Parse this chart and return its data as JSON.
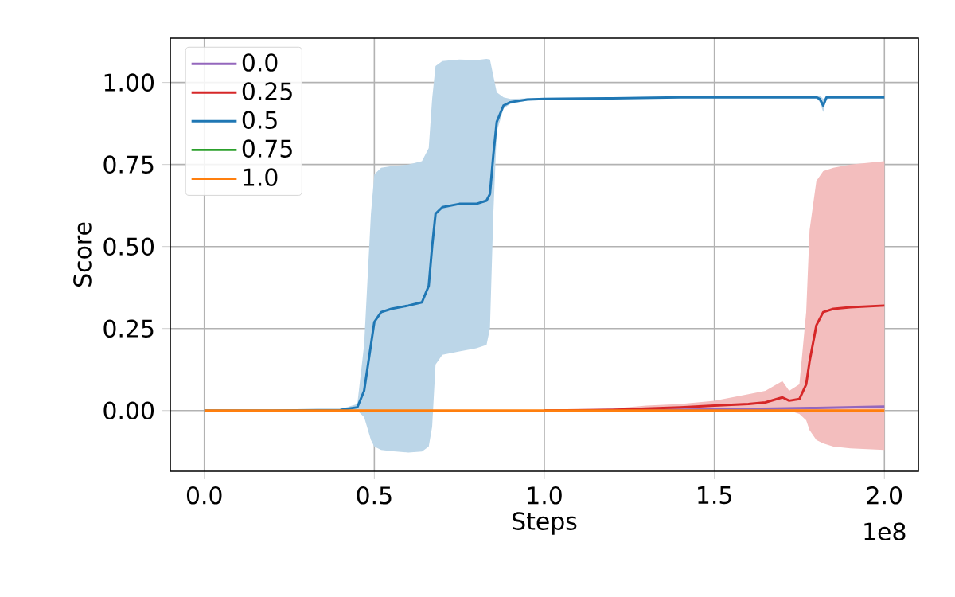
{
  "chart_data": {
    "type": "line",
    "xlabel": "Steps",
    "ylabel": "Score",
    "xlim": [
      -0.1,
      2.1
    ],
    "ylim": [
      -0.185,
      1.135
    ],
    "xticks": [
      {
        "value": 0,
        "label": "0.0"
      },
      {
        "value": 0.5,
        "label": "0.5"
      },
      {
        "value": 1,
        "label": "1.0"
      },
      {
        "value": 1.5,
        "label": "1.5"
      },
      {
        "value": 2,
        "label": "2.0"
      }
    ],
    "yticks": [
      {
        "value": 0,
        "label": "0.00"
      },
      {
        "value": 0.25,
        "label": "0.25"
      },
      {
        "value": 0.5,
        "label": "0.50"
      },
      {
        "value": 0.75,
        "label": "0.75"
      },
      {
        "value": 1,
        "label": "1.00"
      }
    ],
    "annotations": [
      "1e8"
    ],
    "grid": true,
    "legend": "top left",
    "line_style": "solid",
    "series": [
      {
        "name": "0.0",
        "color": "#9467bd",
        "x": [
          1,
          1.5,
          1.8,
          2
        ],
        "values": [
          0,
          0.003,
          0.008,
          0.012
        ]
      },
      {
        "name": "0.25",
        "color": "#d62728",
        "x": [
          0,
          0.5,
          1,
          1.2,
          1.3,
          1.4,
          1.5,
          1.6,
          1.65,
          1.7,
          1.72,
          1.75,
          1.77,
          1.78,
          1.8,
          1.82,
          1.85,
          1.9,
          2
        ],
        "values": [
          null,
          null,
          0,
          0.002,
          0.006,
          0.01,
          0.015,
          0.02,
          0.025,
          0.04,
          0.03,
          0.035,
          0.08,
          0.15,
          0.26,
          0.3,
          0.31,
          0.315,
          0.32
        ],
        "lower": [
          0,
          0,
          0,
          -0.002,
          -0.001,
          0,
          0,
          0,
          0,
          0,
          0,
          -0.01,
          -0.03,
          -0.06,
          -0.09,
          -0.1,
          -0.11,
          -0.115,
          -0.12
        ],
        "upper": [
          0,
          0,
          0,
          0.006,
          0.015,
          0.02,
          0.03,
          0.05,
          0.06,
          0.09,
          0.06,
          0.08,
          0.3,
          0.55,
          0.7,
          0.73,
          0.74,
          0.75,
          0.76
        ]
      },
      {
        "name": "0.5",
        "color": "#1f77b4",
        "x": [
          0,
          0.2,
          0.4,
          0.45,
          0.47,
          0.49,
          0.5,
          0.52,
          0.55,
          0.6,
          0.64,
          0.66,
          0.67,
          0.68,
          0.7,
          0.75,
          0.8,
          0.83,
          0.84,
          0.85,
          0.86,
          0.88,
          0.9,
          0.95,
          1,
          1.2,
          1.4,
          1.6,
          1.8,
          1.81,
          1.82,
          1.83,
          1.85,
          2
        ],
        "values": [
          0,
          0,
          0.002,
          0.01,
          0.06,
          0.2,
          0.27,
          0.3,
          0.31,
          0.32,
          0.33,
          0.38,
          0.5,
          0.6,
          0.62,
          0.63,
          0.63,
          0.64,
          0.66,
          0.78,
          0.88,
          0.93,
          0.94,
          0.948,
          0.95,
          0.952,
          0.955,
          0.955,
          0.955,
          0.95,
          0.93,
          0.955,
          0.955,
          0.955
        ],
        "lower": [
          0,
          0,
          0,
          0,
          -0.02,
          -0.09,
          -0.11,
          -0.12,
          -0.124,
          -0.128,
          -0.125,
          -0.11,
          -0.05,
          0.14,
          0.17,
          0.18,
          0.19,
          0.2,
          0.25,
          0.6,
          0.85,
          0.92,
          0.935,
          0.945,
          0.948,
          0.95,
          0.953,
          0.953,
          0.953,
          0.94,
          0.91,
          0.953,
          0.953,
          0.953
        ],
        "upper": [
          0,
          0,
          0.004,
          0.02,
          0.2,
          0.6,
          0.72,
          0.74,
          0.745,
          0.75,
          0.76,
          0.8,
          0.95,
          1.05,
          1.065,
          1.07,
          1.068,
          1.072,
          1.07,
          1.02,
          0.97,
          0.955,
          0.95,
          0.952,
          0.953,
          0.955,
          0.957,
          0.957,
          0.957,
          0.96,
          0.95,
          0.957,
          0.957,
          0.957
        ]
      },
      {
        "name": "0.75",
        "color": "#2ca02c"
      },
      {
        "name": "1.0",
        "color": "#ff7f0e",
        "x": [
          0,
          2
        ],
        "values": [
          0,
          0
        ]
      }
    ]
  }
}
